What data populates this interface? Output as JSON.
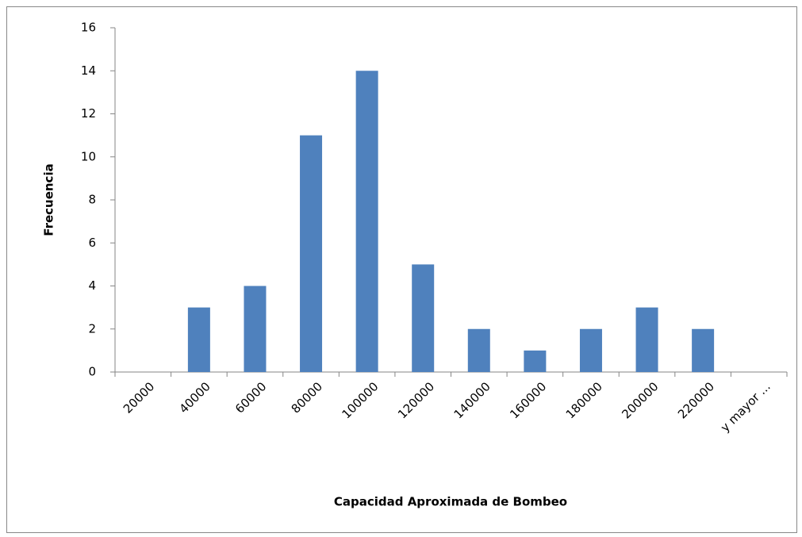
{
  "chart_data": {
    "type": "bar",
    "xlabel": "Capacidad Aproximada de Bombeo",
    "ylabel": "Frecuencia",
    "categories": [
      "20000",
      "40000",
      "60000",
      "80000",
      "100000",
      "120000",
      "140000",
      "160000",
      "180000",
      "200000",
      "220000",
      "y mayor ..."
    ],
    "values": [
      0,
      3,
      4,
      11,
      14,
      5,
      2,
      1,
      2,
      3,
      2,
      0
    ],
    "color": "#4f81bd",
    "ylim": [
      0,
      16
    ],
    "yticks": [
      0,
      2,
      4,
      6,
      8,
      10,
      12,
      14,
      16
    ],
    "grid": false
  }
}
